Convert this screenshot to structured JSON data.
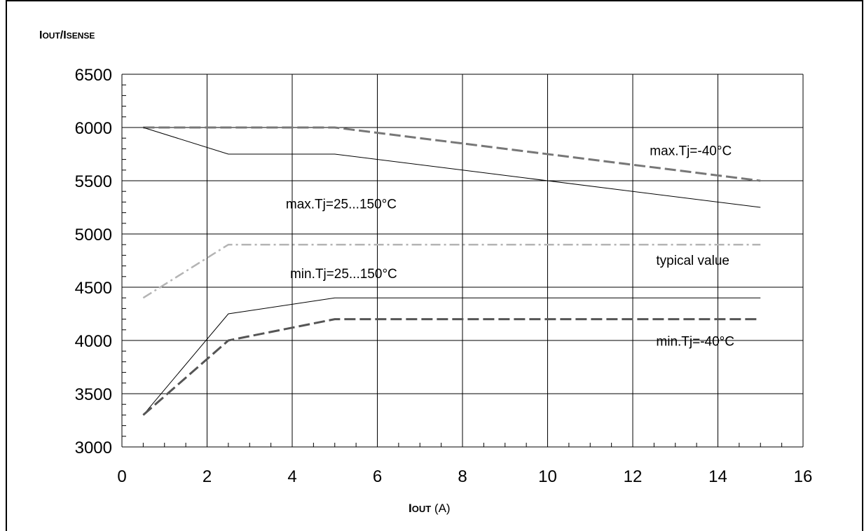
{
  "chart_data": {
    "type": "line",
    "ylabel": {
      "main": "I",
      "sub1": "OUT",
      "mid": "/I",
      "sub2": "SENSE"
    },
    "xlabel": {
      "main": "I",
      "sub": "OUT",
      "unit": " (A)"
    },
    "xlim": [
      0,
      16
    ],
    "ylim": [
      3000,
      6500
    ],
    "x_ticks": [
      0,
      2,
      4,
      6,
      8,
      10,
      12,
      14,
      16
    ],
    "y_ticks": [
      3000,
      3500,
      4000,
      4500,
      5000,
      5500,
      6000,
      6500
    ],
    "grid": true,
    "series": [
      {
        "name": "max.Tj=-40°C",
        "style": "dashed",
        "color": "#777777",
        "x": [
          0.5,
          5,
          15
        ],
        "y": [
          6000,
          6000,
          5500
        ]
      },
      {
        "name": "max.Tj=25...150°C",
        "style": "solid-thin",
        "color": "#000000",
        "x": [
          0.5,
          2.5,
          5,
          15
        ],
        "y": [
          6000,
          5750,
          5750,
          5250
        ]
      },
      {
        "name": "typical value",
        "style": "dashdot",
        "color": "#b4b4b4",
        "x": [
          0.5,
          2.5,
          15
        ],
        "y": [
          4400,
          4900,
          4900
        ]
      },
      {
        "name": "min.Tj=25...150°C",
        "style": "solid-thin",
        "color": "#000000",
        "x": [
          0.5,
          2.5,
          5,
          15
        ],
        "y": [
          3300,
          4250,
          4400,
          4400
        ]
      },
      {
        "name": "min.Tj=-40°C",
        "style": "dashed",
        "color": "#555555",
        "x": [
          0.5,
          2.5,
          5,
          15
        ],
        "y": [
          3300,
          4000,
          4200,
          4200
        ]
      }
    ],
    "annotations": [
      {
        "text": "max.Tj=-40°C",
        "x": 12.4,
        "y": 5740
      },
      {
        "text": "max.Tj=25...150°C",
        "x": 3.85,
        "y": 5240
      },
      {
        "text": "typical value",
        "x": 12.55,
        "y": 4710
      },
      {
        "text": "min.Tj=25...150°C",
        "x": 3.95,
        "y": 4585
      },
      {
        "text": "min.Tj=-40°C",
        "x": 12.55,
        "y": 3950
      }
    ]
  }
}
